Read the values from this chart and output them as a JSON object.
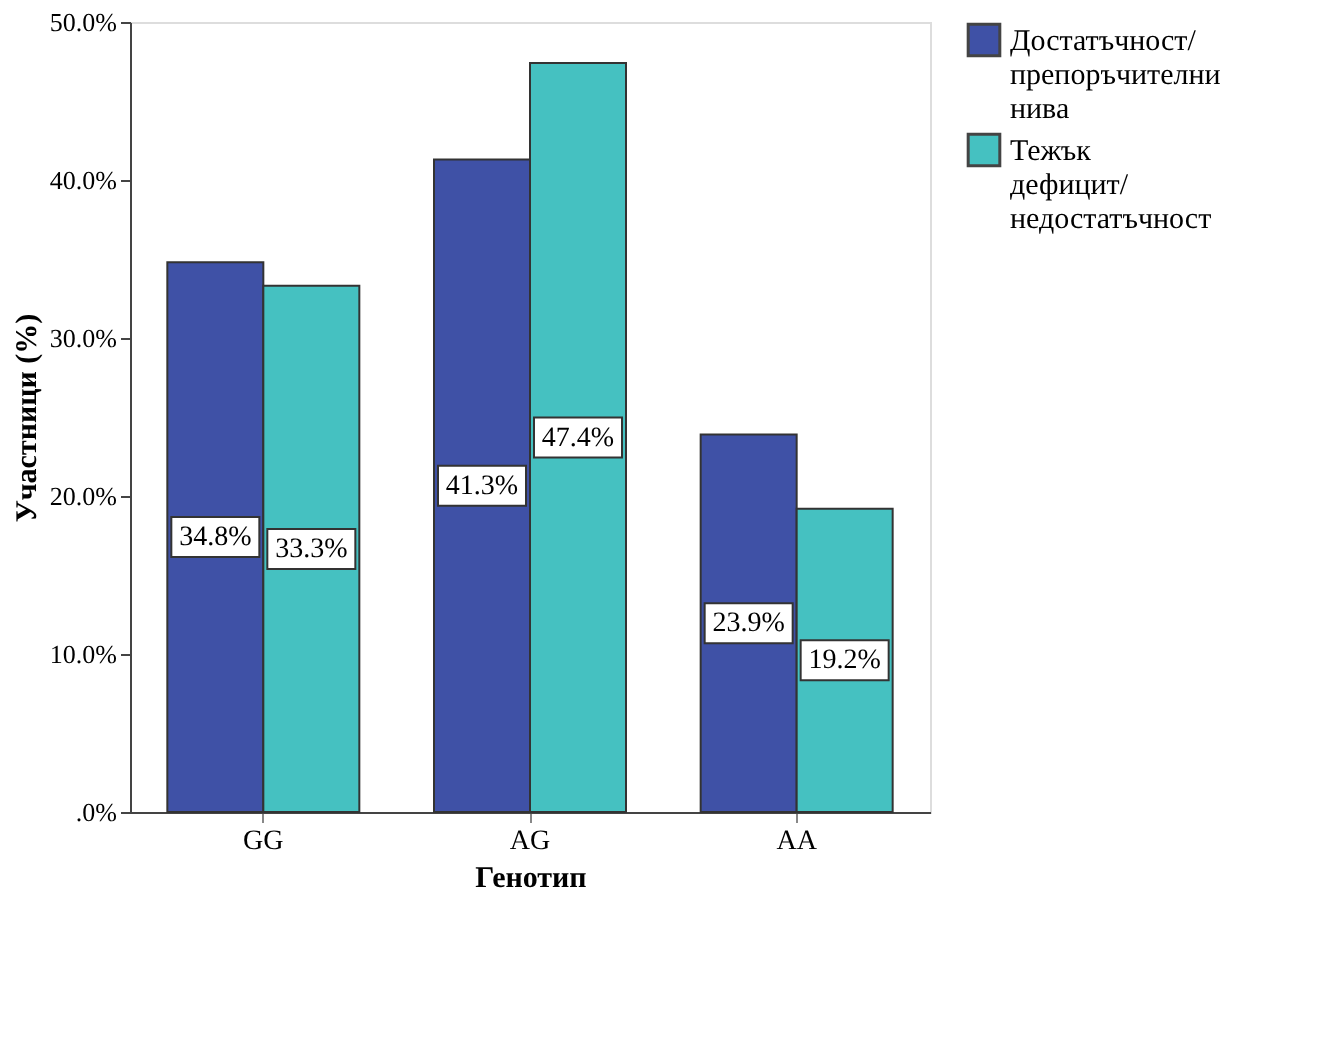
{
  "chart_data": {
    "type": "bar",
    "xlabel": "Генотип",
    "ylabel": "Участници (%)",
    "categories": [
      "GG",
      "AG",
      "AA"
    ],
    "series": [
      {
        "name": "Достатъчност/препоръчителни нива",
        "color": "#3f51a6",
        "values": [
          34.8,
          41.3,
          23.9
        ]
      },
      {
        "name": "Тежък дефицит/недостатъчност",
        "color": "#45c1c1",
        "values": [
          33.3,
          47.4,
          19.2
        ]
      }
    ],
    "ylim": [
      0,
      50
    ],
    "yticks": [
      {
        "value": 0,
        "label": ".0%"
      },
      {
        "value": 10,
        "label": "10.0%"
      },
      {
        "value": 20,
        "label": "20.0%"
      },
      {
        "value": 30,
        "label": "30.0%"
      },
      {
        "value": 40,
        "label": "40.0%"
      },
      {
        "value": 50,
        "label": "50.0%"
      }
    ],
    "value_labels": [
      [
        "34.8%",
        "41.3%",
        "23.9%"
      ],
      [
        "33.3%",
        "47.4%",
        "19.2%"
      ]
    ],
    "grid": false,
    "legend": "right"
  }
}
